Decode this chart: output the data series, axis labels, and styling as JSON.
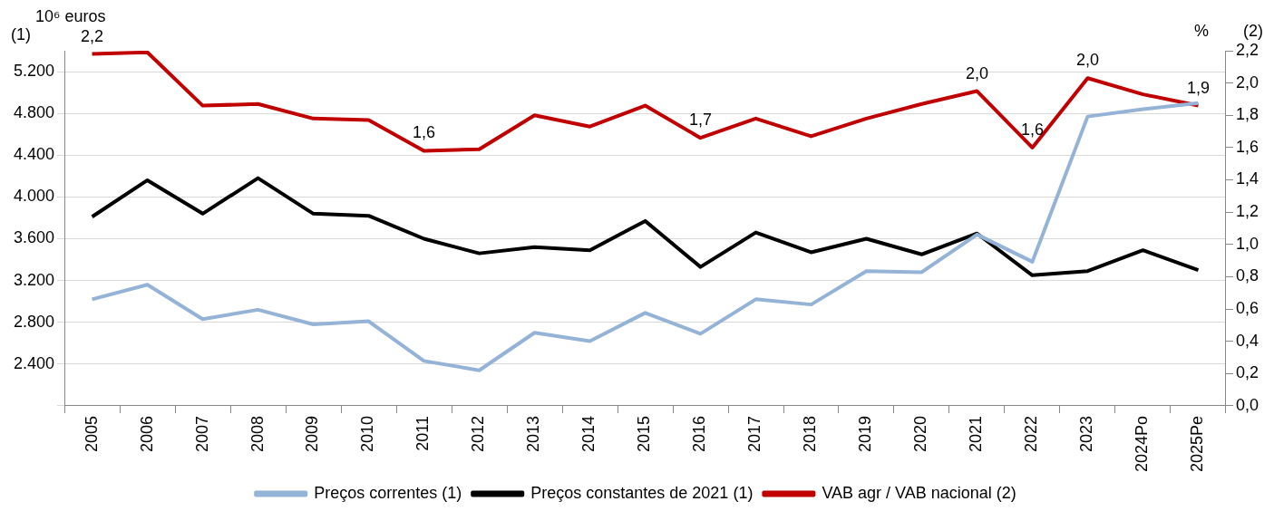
{
  "chart_data": {
    "type": "line",
    "categories": [
      "2005",
      "2006",
      "2007",
      "2008",
      "2009",
      "2010",
      "2011",
      "2012",
      "2013",
      "2014",
      "2015",
      "2016",
      "2017",
      "2018",
      "2019",
      "2020",
      "2021",
      "2022",
      "2023",
      "2024Po",
      "2025Pe"
    ],
    "series": [
      {
        "name": "Preços correntes (1)",
        "color": "#95b3d7",
        "values": [
          3020,
          3160,
          2830,
          2920,
          2780,
          2810,
          2430,
          2340,
          2700,
          2620,
          2890,
          2690,
          3020,
          2970,
          3290,
          3280,
          3640,
          3380,
          4770,
          4840,
          4900
        ]
      },
      {
        "name": "Preços constantes de 2021 (1)",
        "color": "#000000",
        "values": [
          3810,
          4160,
          3840,
          4180,
          3840,
          3820,
          3600,
          3460,
          3520,
          3490,
          3770,
          3330,
          3660,
          3470,
          3600,
          3450,
          3650,
          3250,
          3290,
          3490,
          3300
        ]
      },
      {
        "name": "VAB agr / VAB nacional (2)",
        "color": "#c00000",
        "axis": "y2",
        "values": [
          2.18,
          2.19,
          1.86,
          1.87,
          1.78,
          1.77,
          1.58,
          1.59,
          1.8,
          1.73,
          1.86,
          1.66,
          1.78,
          1.67,
          1.78,
          1.87,
          1.95,
          1.6,
          2.03,
          1.93,
          1.86
        ],
        "value_labels": [
          "2,2",
          null,
          null,
          null,
          null,
          null,
          "1,6",
          null,
          null,
          null,
          null,
          "1,7",
          null,
          null,
          null,
          null,
          "2,0",
          "1,6",
          "2,0",
          null,
          "1,9"
        ]
      }
    ],
    "ylabel": "(1)",
    "y2label": "(2)",
    "annotations": [
      "10⁶ euros",
      "%"
    ],
    "ylim": [
      2000,
      5400
    ],
    "yticks": [
      {
        "value": 2000,
        "label": null
      },
      {
        "value": 2400,
        "label": "2.400"
      },
      {
        "value": 2800,
        "label": "2.800"
      },
      {
        "value": 3200,
        "label": "3.200"
      },
      {
        "value": 3600,
        "label": "3.600"
      },
      {
        "value": 4000,
        "label": "4.000"
      },
      {
        "value": 4400,
        "label": "4.400"
      },
      {
        "value": 4800,
        "label": "4.800"
      },
      {
        "value": 5200,
        "label": "5.200"
      }
    ],
    "y2lim": [
      0,
      2.2
    ],
    "y2ticks": [
      {
        "value": 0,
        "label": "0,0"
      },
      {
        "value": 0.2,
        "label": "0,2"
      },
      {
        "value": 0.4,
        "label": "0,4"
      },
      {
        "value": 0.6,
        "label": "0,6"
      },
      {
        "value": 0.8,
        "label": "0,8"
      },
      {
        "value": 1,
        "label": "1,0"
      },
      {
        "value": 1.2,
        "label": "1,2"
      },
      {
        "value": 1.4,
        "label": "1,4"
      },
      {
        "value": 1.6,
        "label": "1,6"
      },
      {
        "value": 1.8,
        "label": "1,8"
      },
      {
        "value": 2,
        "label": "2,0"
      },
      {
        "value": 2.2,
        "label": "2,2"
      }
    ],
    "grid": "y",
    "legend": "bottom",
    "marker": "none",
    "line_style": "solid"
  }
}
